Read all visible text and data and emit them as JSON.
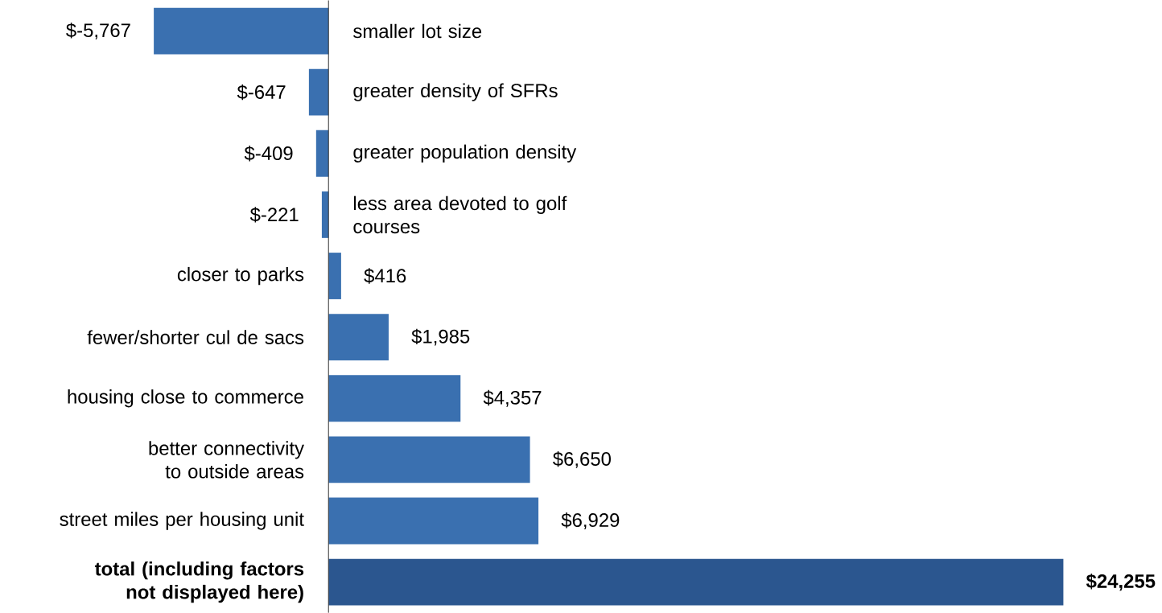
{
  "chart_data": {
    "type": "bar",
    "orientation": "horizontal",
    "categories": [
      "smaller lot size",
      "greater density of SFRs",
      "greater population density",
      "less area devoted to golf courses",
      "closer to parks",
      "fewer/shorter cul de sacs",
      "housing close to commerce",
      "better connectivity to outside areas",
      "street miles per housing unit",
      "**total (including factors not displayed here)**"
    ],
    "values": [
      -5767,
      -647,
      -409,
      -221,
      416,
      1985,
      4357,
      6650,
      6929,
      24255
    ],
    "value_labels": [
      "$-5,767",
      "$-647",
      "$-409",
      "$-221",
      "$416",
      "$1,985",
      "$4,357",
      "$6,650",
      "$6,929",
      "**$24,255**"
    ],
    "colors": [
      "#3a70b0",
      "#3a70b0",
      "#3a70b0",
      "#3a70b0",
      "#3a70b0",
      "#3a70b0",
      "#3a70b0",
      "#3a70b0",
      "#3a70b0",
      "#2b568f"
    ]
  }
}
